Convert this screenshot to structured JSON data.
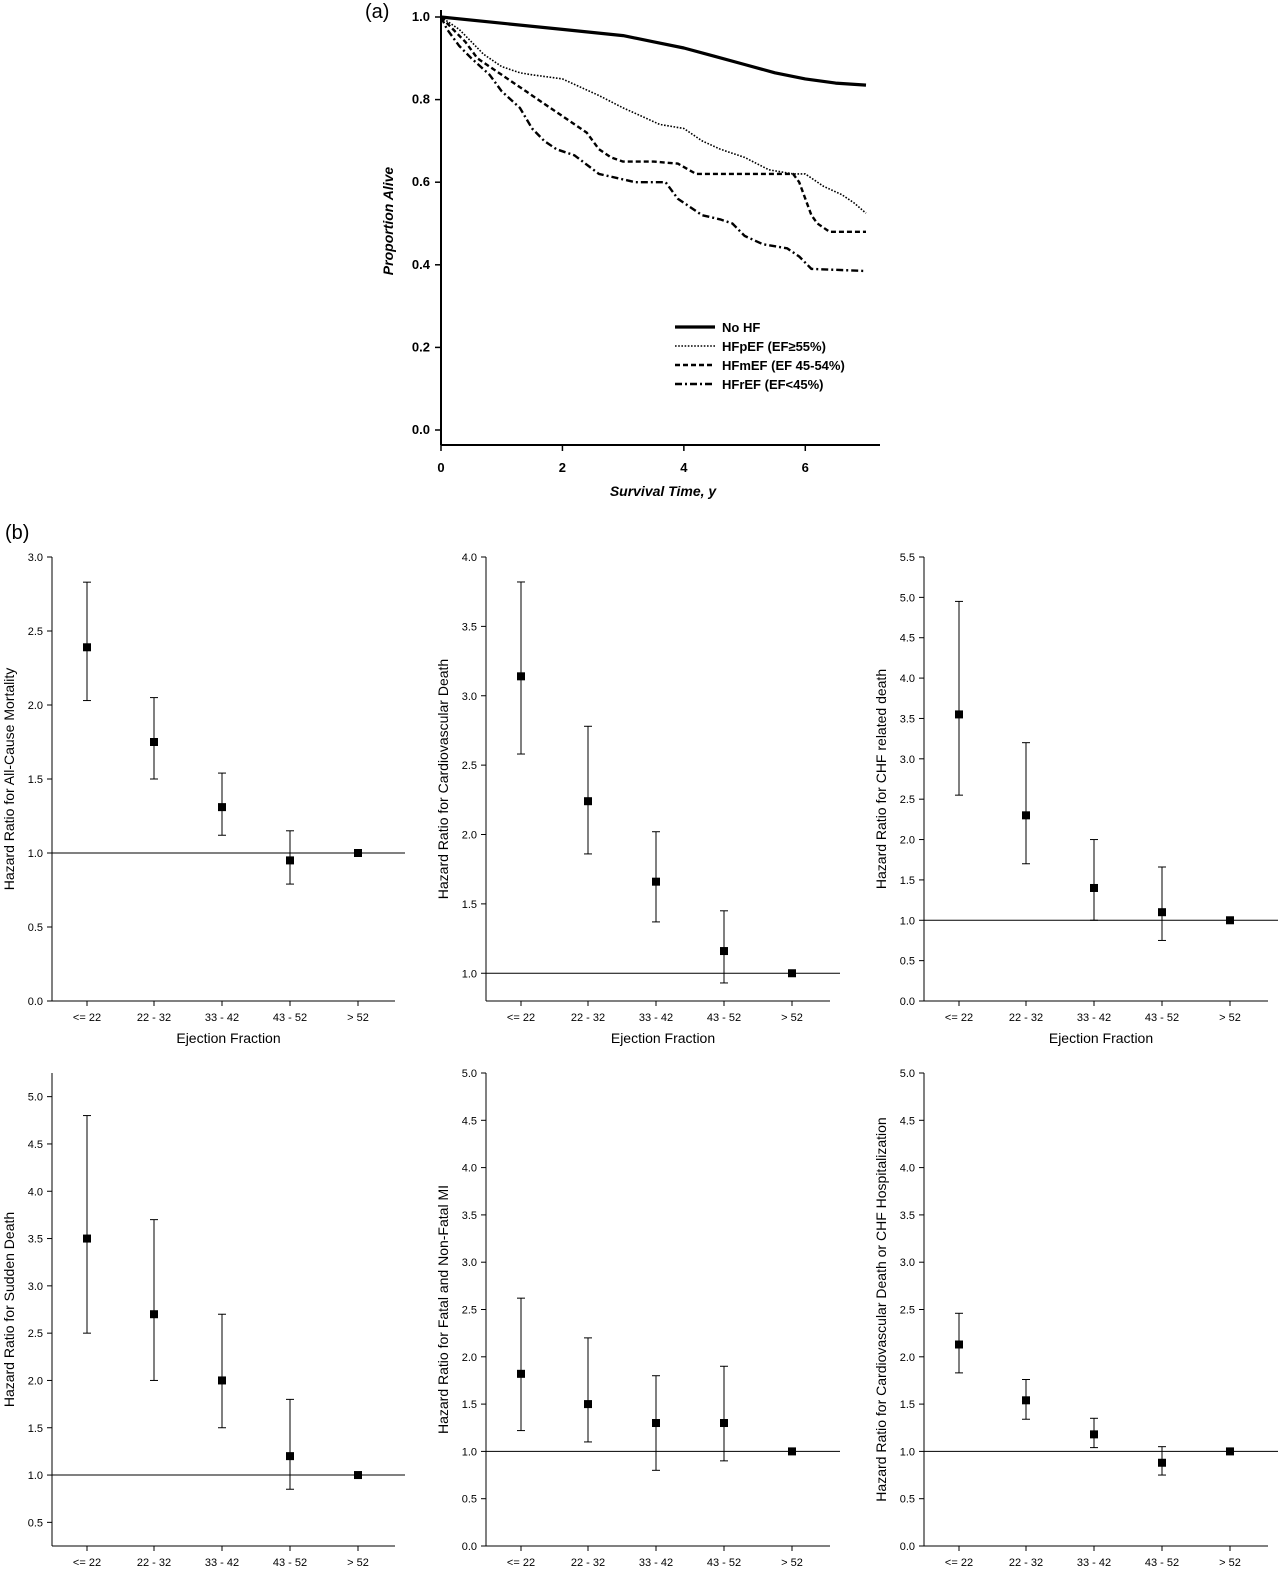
{
  "panel_labels": {
    "a": "(a)",
    "b": "(b)"
  },
  "chart_data": [
    {
      "id": "a",
      "type": "line",
      "title": "",
      "xlabel": "Survival Time, y",
      "ylabel": "Proportion Alive",
      "xlim": [
        0,
        7
      ],
      "ylim": [
        0,
        1.0
      ],
      "xticks": [
        0,
        2,
        4,
        6
      ],
      "xtick_labels": [
        "0",
        "2",
        "4",
        "6"
      ],
      "yticks": [
        0,
        0.2,
        0.4,
        0.6,
        0.8,
        1.0
      ],
      "ytick_labels": [
        "0.0",
        "0.2",
        "0.4",
        "0.6",
        "0.8",
        "1.0"
      ],
      "grid": false,
      "legend_position": "lower-right",
      "series": [
        {
          "name": "No HF",
          "style": "solid",
          "x": [
            0,
            1,
            2,
            3,
            3.5,
            4,
            4.5,
            5,
            5.5,
            6,
            6.5,
            7
          ],
          "y": [
            1.0,
            0.985,
            0.97,
            0.955,
            0.94,
            0.925,
            0.905,
            0.885,
            0.865,
            0.85,
            0.84,
            0.835
          ]
        },
        {
          "name": "HFpEF (EF≥55%)",
          "style": "dotted",
          "x": [
            0,
            0.3,
            0.5,
            0.7,
            1.0,
            1.3,
            1.5,
            2.0,
            2.3,
            2.6,
            3.0,
            3.3,
            3.6,
            4.0,
            4.3,
            4.6,
            5.0,
            5.4,
            5.8,
            6.0,
            6.3,
            6.6,
            6.8,
            7.0
          ],
          "y": [
            1.0,
            0.97,
            0.94,
            0.91,
            0.88,
            0.865,
            0.86,
            0.85,
            0.83,
            0.81,
            0.78,
            0.76,
            0.74,
            0.73,
            0.7,
            0.68,
            0.66,
            0.63,
            0.62,
            0.62,
            0.59,
            0.57,
            0.55,
            0.525
          ]
        },
        {
          "name": "HFmEF (EF 45-54%)",
          "style": "dashed",
          "x": [
            0,
            0.2,
            0.4,
            0.6,
            0.8,
            1.0,
            1.2,
            1.4,
            1.6,
            1.8,
            2.0,
            2.2,
            2.4,
            2.5,
            2.6,
            2.8,
            3.0,
            3.5,
            3.9,
            4.2,
            5.0,
            5.8,
            5.9,
            6.0,
            6.1,
            6.2,
            6.4,
            7.0
          ],
          "y": [
            1.0,
            0.97,
            0.94,
            0.9,
            0.88,
            0.86,
            0.84,
            0.82,
            0.8,
            0.78,
            0.76,
            0.74,
            0.72,
            0.7,
            0.68,
            0.66,
            0.65,
            0.65,
            0.645,
            0.62,
            0.62,
            0.62,
            0.6,
            0.56,
            0.52,
            0.5,
            0.48,
            0.48
          ]
        },
        {
          "name": "HFrEF (EF<45%)",
          "style": "dashdot",
          "x": [
            0,
            0.1,
            0.3,
            0.5,
            0.8,
            1.0,
            1.3,
            1.5,
            1.7,
            1.9,
            2.2,
            2.6,
            3.2,
            3.7,
            3.9,
            4.0,
            4.3,
            4.6,
            4.8,
            5.0,
            5.3,
            5.7,
            5.9,
            6.1,
            7.0
          ],
          "y": [
            1.0,
            0.97,
            0.93,
            0.9,
            0.86,
            0.82,
            0.78,
            0.73,
            0.7,
            0.68,
            0.665,
            0.62,
            0.6,
            0.6,
            0.56,
            0.55,
            0.52,
            0.51,
            0.5,
            0.47,
            0.45,
            0.44,
            0.42,
            0.39,
            0.385
          ]
        }
      ]
    },
    {
      "id": "b1",
      "type": "scatter",
      "ylabel": "Hazard Ratio for All-Cause Mortality",
      "xlabel": "Ejection Fraction",
      "categories": [
        "<= 22",
        "22 - 32",
        "33 - 42",
        "43 - 52",
        "> 52"
      ],
      "ylim": [
        0,
        3.0
      ],
      "yticks": [
        0.0,
        0.5,
        1.0,
        1.5,
        2.0,
        2.5,
        3.0
      ],
      "ytick_labels": [
        "0.0",
        "0.5",
        "1.0",
        "1.5",
        "2.0",
        "2.5",
        "3.0"
      ],
      "reference_line": 1.0,
      "values": [
        2.39,
        1.75,
        1.31,
        0.95,
        1.0
      ],
      "ci_lower": [
        2.03,
        1.5,
        1.12,
        0.79,
        null
      ],
      "ci_upper": [
        2.83,
        2.05,
        1.54,
        1.15,
        null
      ]
    },
    {
      "id": "b2",
      "type": "scatter",
      "ylabel": "Hazard Ratio for Cardiovascular Death",
      "xlabel": "Ejection Fraction",
      "categories": [
        "<= 22",
        "22 - 32",
        "33 - 42",
        "43 - 52",
        "> 52"
      ],
      "ylim": [
        0.8,
        4.0
      ],
      "yticks": [
        1.0,
        1.5,
        2.0,
        2.5,
        3.0,
        3.5,
        4.0
      ],
      "ytick_labels": [
        "1.0",
        "1.5",
        "2.0",
        "2.5",
        "3.0",
        "3.5",
        "4.0"
      ],
      "reference_line": 1.0,
      "values": [
        3.14,
        2.24,
        1.66,
        1.16,
        1.0
      ],
      "ci_lower": [
        2.58,
        1.86,
        1.37,
        0.93,
        null
      ],
      "ci_upper": [
        3.82,
        2.78,
        2.02,
        1.45,
        null
      ]
    },
    {
      "id": "b3",
      "type": "scatter",
      "ylabel": "Hazard Ratio for CHF related death",
      "xlabel": "Ejection Fraction",
      "categories": [
        "<= 22",
        "22 - 32",
        "33 - 42",
        "43 - 52",
        "> 52"
      ],
      "ylim": [
        0,
        5.5
      ],
      "yticks": [
        0.0,
        0.5,
        1.0,
        1.5,
        2.0,
        2.5,
        3.0,
        3.5,
        4.0,
        4.5,
        5.0,
        5.5
      ],
      "ytick_labels": [
        "0.0",
        "0.5",
        "1.0",
        "1.5",
        "2.0",
        "2.5",
        "3.0",
        "3.5",
        "4.0",
        "4.5",
        "5.0",
        "5.5"
      ],
      "reference_line": 1.0,
      "values": [
        3.55,
        2.3,
        1.4,
        1.1,
        1.0
      ],
      "ci_lower": [
        2.55,
        1.7,
        1.0,
        0.75,
        null
      ],
      "ci_upper": [
        4.95,
        3.2,
        2.0,
        1.66,
        null
      ]
    },
    {
      "id": "b4",
      "type": "scatter",
      "ylabel": "Hazard Ratio for Sudden Death",
      "xlabel": "Ejection Fraction",
      "categories": [
        "<= 22",
        "22 - 32",
        "33 - 42",
        "43 - 52",
        "> 52"
      ],
      "ylim": [
        0.25,
        5.25
      ],
      "yticks": [
        0.5,
        1.0,
        1.5,
        2.0,
        2.5,
        3.0,
        3.5,
        4.0,
        4.5,
        5.0
      ],
      "ytick_labels": [
        "0.5",
        "1.0",
        "1.5",
        "2.0",
        "2.5",
        "3.0",
        "3.5",
        "4.0",
        "4.5",
        "5.0"
      ],
      "reference_line": 1.0,
      "values": [
        3.5,
        2.7,
        2.0,
        1.2,
        1.0
      ],
      "ci_lower": [
        2.5,
        2.0,
        1.5,
        0.85,
        null
      ],
      "ci_upper": [
        4.8,
        3.7,
        2.7,
        1.8,
        null
      ]
    },
    {
      "id": "b5",
      "type": "scatter",
      "ylabel": "Hazard Ratio for Fatal and Non-Fatal MI",
      "xlabel": "Ejection Fraction",
      "categories": [
        "<= 22",
        "22 - 32",
        "33 - 42",
        "43 - 52",
        "> 52"
      ],
      "ylim": [
        0,
        5.0
      ],
      "yticks": [
        0.0,
        0.5,
        1.0,
        1.5,
        2.0,
        2.5,
        3.0,
        3.5,
        4.0,
        4.5,
        5.0
      ],
      "ytick_labels": [
        "0.0",
        "0.5",
        "1.0",
        "1.5",
        "2.0",
        "2.5",
        "3.0",
        "3.5",
        "4.0",
        "4.5",
        "5.0"
      ],
      "reference_line": 1.0,
      "values": [
        1.82,
        1.5,
        1.3,
        1.3,
        1.0
      ],
      "ci_lower": [
        1.22,
        1.1,
        0.8,
        0.9,
        null
      ],
      "ci_upper": [
        2.62,
        2.2,
        1.8,
        1.9,
        null
      ]
    },
    {
      "id": "b6",
      "type": "scatter",
      "ylabel": "Hazard Ratio for Cardiovascular Death or CHF Hospitalization",
      "xlabel": "Ejection Fraction",
      "categories": [
        "<= 22",
        "22 - 32",
        "33 - 42",
        "43 - 52",
        "> 52"
      ],
      "ylim": [
        0,
        5.0
      ],
      "yticks": [
        0.0,
        0.5,
        1.0,
        1.5,
        2.0,
        2.5,
        3.0,
        3.5,
        4.0,
        4.5,
        5.0
      ],
      "ytick_labels": [
        "0.0",
        "0.5",
        "1.0",
        "1.5",
        "2.0",
        "2.5",
        "3.0",
        "3.5",
        "4.0",
        "4.5",
        "5.0"
      ],
      "reference_line": 1.0,
      "values": [
        2.13,
        1.54,
        1.18,
        0.88,
        1.0
      ],
      "ci_lower": [
        1.83,
        1.34,
        1.04,
        0.75,
        null
      ],
      "ci_upper": [
        2.46,
        1.76,
        1.35,
        1.05,
        null
      ]
    }
  ]
}
